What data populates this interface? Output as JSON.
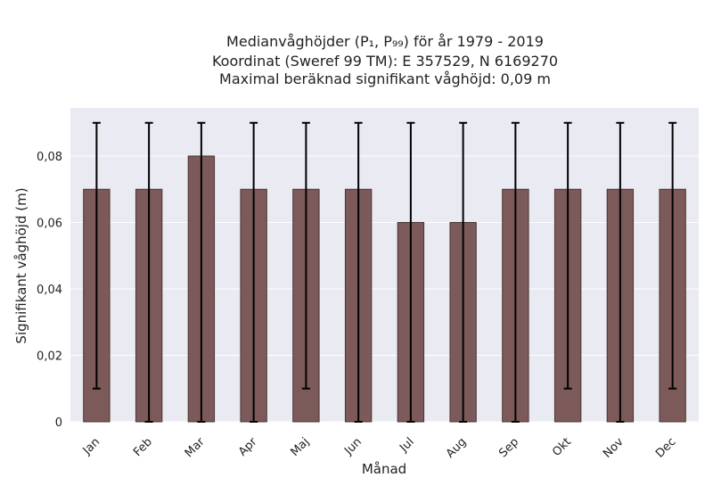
{
  "chart_data": {
    "type": "bar",
    "title_lines": [
      "Medianvåghöjder (P₁, P₉₉) för år 1979 - 2019",
      "Koordinat (Sweref 99 TM): E 357529, N 6169270",
      "Maximal beräknad signifikant våghöjd: 0,09 m"
    ],
    "xlabel": "Månad",
    "ylabel": "Signifikant våghöjd (m)",
    "categories": [
      "Jan",
      "Feb",
      "Mar",
      "Apr",
      "Maj",
      "Jun",
      "Jul",
      "Aug",
      "Sep",
      "Okt",
      "Nov",
      "Dec"
    ],
    "values": [
      0.07,
      0.07,
      0.08,
      0.07,
      0.07,
      0.07,
      0.06,
      0.06,
      0.07,
      0.07,
      0.07,
      0.07
    ],
    "p1": [
      0.01,
      0.0,
      0.0,
      0.0,
      0.01,
      0.0,
      0.0,
      0.0,
      0.0,
      0.01,
      0.0,
      0.01
    ],
    "p99": [
      0.09,
      0.09,
      0.09,
      0.09,
      0.09,
      0.09,
      0.09,
      0.09,
      0.09,
      0.09,
      0.09,
      0.09
    ],
    "ylim": [
      0,
      0.0945
    ],
    "yticks": [
      0,
      0.02,
      0.04,
      0.06,
      0.08
    ],
    "ytick_labels": [
      "0",
      "0,02",
      "0,04",
      "0,06",
      "0,08"
    ],
    "grid": true,
    "colors": {
      "bar": "#7d5a5a",
      "bar_edge": "#4a3434",
      "error_bar": "#000000",
      "plot_bg": "#eaeaf2",
      "grid": "#ffffff"
    }
  }
}
